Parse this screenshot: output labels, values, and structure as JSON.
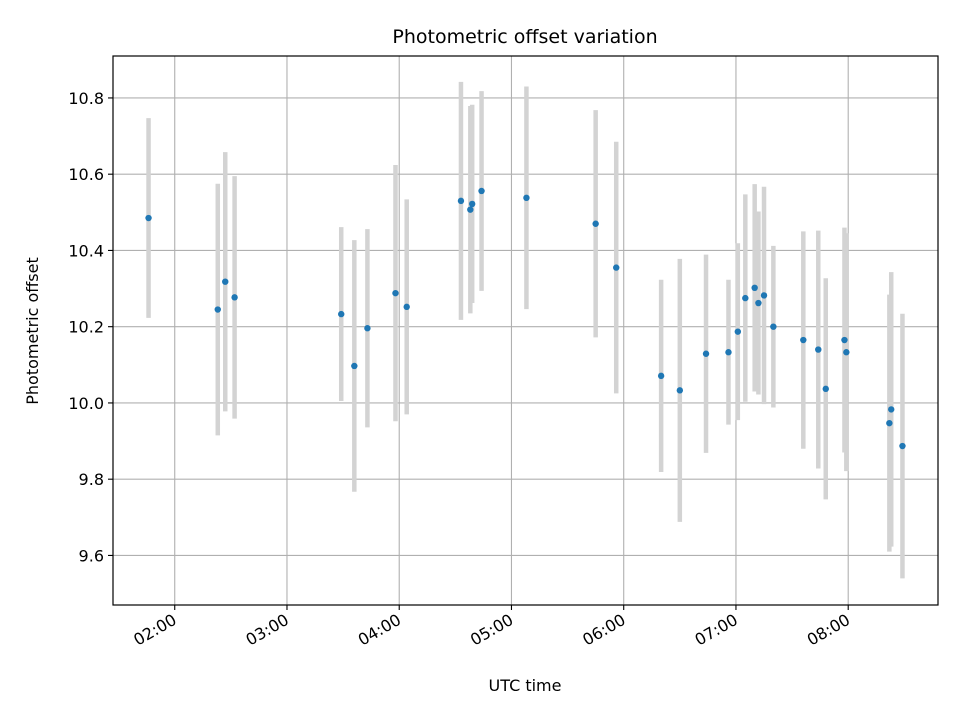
{
  "chart_data": {
    "type": "scatter",
    "title": "Photometric offset variation",
    "xlabel": "UTC time",
    "ylabel": "Photometric offset",
    "grid": true,
    "xlim": [
      "01:27",
      "08:48"
    ],
    "ylim": [
      9.47,
      10.91
    ],
    "x_ticks": [
      "02:00",
      "03:00",
      "04:00",
      "05:00",
      "06:00",
      "07:00",
      "08:00"
    ],
    "y_ticks": [
      9.6,
      9.8,
      10.0,
      10.2,
      10.4,
      10.6,
      10.8
    ],
    "y_tick_labels": [
      "9.6",
      "9.8",
      "10.0",
      "10.2",
      "10.4",
      "10.6",
      "10.8"
    ],
    "colors": {
      "point": "#1f77b4",
      "errorbar": "#d3d3d3",
      "grid": "#b0b0b0"
    },
    "points": [
      {
        "x": "01:46",
        "y": 10.485,
        "err": 0.262
      },
      {
        "x": "02:23",
        "y": 10.245,
        "err": 0.33
      },
      {
        "x": "02:27",
        "y": 10.318,
        "err": 0.34
      },
      {
        "x": "02:32",
        "y": 10.277,
        "err": 0.318
      },
      {
        "x": "03:29",
        "y": 10.233,
        "err": 0.228
      },
      {
        "x": "03:36",
        "y": 10.097,
        "err": 0.33
      },
      {
        "x": "03:43",
        "y": 10.196,
        "err": 0.26
      },
      {
        "x": "03:58",
        "y": 10.288,
        "err": 0.336
      },
      {
        "x": "04:04",
        "y": 10.252,
        "err": 0.282
      },
      {
        "x": "04:33",
        "y": 10.53,
        "err": 0.312
      },
      {
        "x": "04:38",
        "y": 10.507,
        "err": 0.272
      },
      {
        "x": "04:39",
        "y": 10.522,
        "err": 0.26
      },
      {
        "x": "04:44",
        "y": 10.556,
        "err": 0.262
      },
      {
        "x": "05:08",
        "y": 10.538,
        "err": 0.292
      },
      {
        "x": "05:45",
        "y": 10.47,
        "err": 0.298
      },
      {
        "x": "05:56",
        "y": 10.355,
        "err": 0.33
      },
      {
        "x": "06:20",
        "y": 10.071,
        "err": 0.252
      },
      {
        "x": "06:30",
        "y": 10.033,
        "err": 0.345
      },
      {
        "x": "06:44",
        "y": 10.129,
        "err": 0.26
      },
      {
        "x": "06:56",
        "y": 10.133,
        "err": 0.19
      },
      {
        "x": "07:01",
        "y": 10.187,
        "err": 0.232
      },
      {
        "x": "07:05",
        "y": 10.275,
        "err": 0.272
      },
      {
        "x": "07:10",
        "y": 10.302,
        "err": 0.272
      },
      {
        "x": "07:12",
        "y": 10.262,
        "err": 0.24
      },
      {
        "x": "07:15",
        "y": 10.282,
        "err": 0.285
      },
      {
        "x": "07:20",
        "y": 10.2,
        "err": 0.212
      },
      {
        "x": "07:36",
        "y": 10.165,
        "err": 0.285
      },
      {
        "x": "07:44",
        "y": 10.14,
        "err": 0.312
      },
      {
        "x": "07:48",
        "y": 10.037,
        "err": 0.29
      },
      {
        "x": "07:58",
        "y": 10.165,
        "err": 0.295
      },
      {
        "x": "07:59",
        "y": 10.133,
        "err": 0.312
      },
      {
        "x": "08:22",
        "y": 9.947,
        "err": 0.337
      },
      {
        "x": "08:23",
        "y": 9.983,
        "err": 0.36
      },
      {
        "x": "08:29",
        "y": 9.887,
        "err": 0.347
      }
    ]
  }
}
